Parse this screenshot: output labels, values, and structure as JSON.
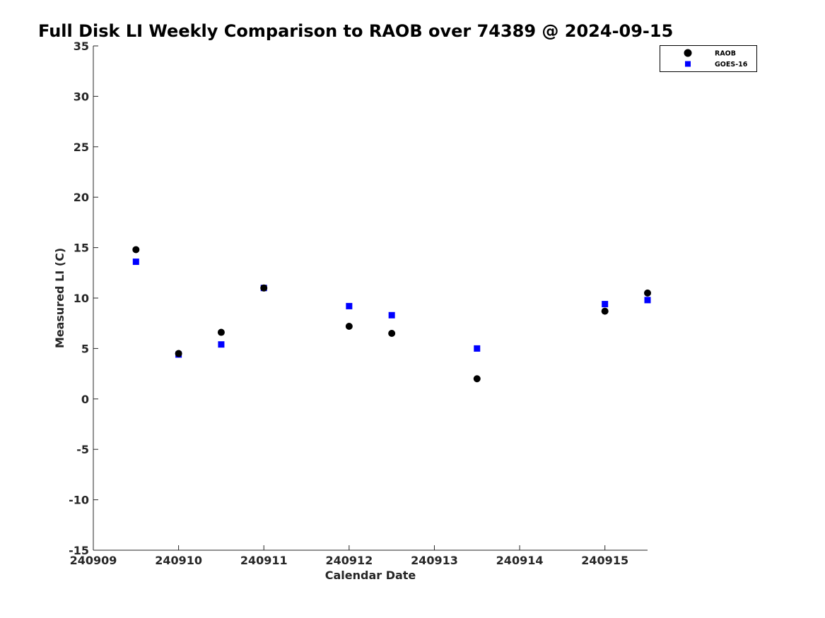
{
  "chart_data": {
    "type": "scatter",
    "title": "Full Disk LI Weekly Comparison to RAOB over 74389 @ 2024-09-15",
    "xlabel": "Calendar Date",
    "ylabel": "Measured LI (C)",
    "xlim": [
      "2024-09-09",
      "2024-09-15T12:00"
    ],
    "ylim": [
      -15,
      35
    ],
    "x_ticks": [
      "240909",
      "240910",
      "240911",
      "240912",
      "240913",
      "240914",
      "240915"
    ],
    "y_ticks": [
      "35",
      "30",
      "25",
      "20",
      "15",
      "10",
      "5",
      "0",
      "-5",
      "-10",
      "-15"
    ],
    "grid": false,
    "legend_position": "top-right",
    "series": [
      {
        "name": "RAOB",
        "marker": "circle",
        "color": "#000000",
        "points": [
          {
            "x": "2024-09-09T12:00",
            "y": 14.8
          },
          {
            "x": "2024-09-10T00:00",
            "y": 4.5
          },
          {
            "x": "2024-09-10T12:00",
            "y": 6.6
          },
          {
            "x": "2024-09-11T00:00",
            "y": 11.0
          },
          {
            "x": "2024-09-12T00:00",
            "y": 7.2
          },
          {
            "x": "2024-09-12T12:00",
            "y": 6.5
          },
          {
            "x": "2024-09-13T12:00",
            "y": 2.0
          },
          {
            "x": "2024-09-15T00:00",
            "y": 8.7
          },
          {
            "x": "2024-09-15T12:00",
            "y": 10.5
          }
        ]
      },
      {
        "name": "GOES-16",
        "marker": "square",
        "color": "#0000ff",
        "points": [
          {
            "x": "2024-09-09T12:00",
            "y": 13.6
          },
          {
            "x": "2024-09-10T00:00",
            "y": 4.4
          },
          {
            "x": "2024-09-10T12:00",
            "y": 5.4
          },
          {
            "x": "2024-09-11T00:00",
            "y": 11.0
          },
          {
            "x": "2024-09-12T00:00",
            "y": 9.2
          },
          {
            "x": "2024-09-12T12:00",
            "y": 8.3
          },
          {
            "x": "2024-09-13T12:00",
            "y": 5.0
          },
          {
            "x": "2024-09-15T00:00",
            "y": 9.4
          },
          {
            "x": "2024-09-15T12:00",
            "y": 9.8
          }
        ]
      }
    ]
  }
}
